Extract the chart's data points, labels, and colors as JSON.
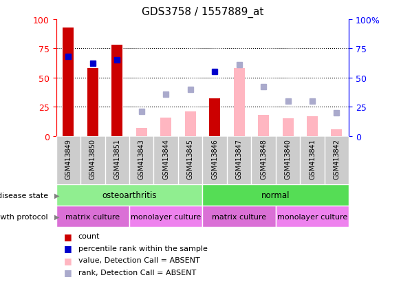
{
  "title": "GDS3758 / 1557889_at",
  "samples": [
    "GSM413849",
    "GSM413850",
    "GSM413851",
    "GSM413843",
    "GSM413844",
    "GSM413845",
    "GSM413846",
    "GSM413847",
    "GSM413848",
    "GSM413840",
    "GSM413841",
    "GSM413842"
  ],
  "count_values": [
    93,
    58,
    78,
    0,
    0,
    0,
    32,
    0,
    0,
    0,
    0,
    0
  ],
  "percentile_rank": [
    68,
    62,
    65,
    null,
    null,
    null,
    55,
    null,
    null,
    null,
    null,
    null
  ],
  "absent_value": [
    null,
    null,
    null,
    7,
    16,
    21,
    null,
    58,
    18,
    15,
    17,
    6
  ],
  "absent_rank": [
    null,
    null,
    null,
    21,
    36,
    40,
    null,
    61,
    42,
    30,
    30,
    20
  ],
  "disease_state_labels": [
    "osteoarthritis",
    "normal"
  ],
  "disease_state_breaks": [
    0,
    6,
    12
  ],
  "disease_state_colors": [
    "#90EE90",
    "#55DD55"
  ],
  "growth_protocol_labels": [
    "matrix culture",
    "monolayer culture",
    "matrix culture",
    "monolayer culture"
  ],
  "growth_protocol_breaks": [
    0,
    3,
    6,
    9,
    12
  ],
  "growth_protocol_colors": [
    "#DA70D6",
    "#EE82EE",
    "#DA70D6",
    "#EE82EE"
  ],
  "bar_color": "#CC0000",
  "dot_color": "#0000CC",
  "absent_bar_color": "#FFB6C1",
  "absent_dot_color": "#AAAACC",
  "ylim": [
    0,
    100
  ],
  "grid_vals": [
    25,
    50,
    75
  ],
  "title_fontsize": 11,
  "legend_items": [
    {
      "color": "#CC0000",
      "label": "count"
    },
    {
      "color": "#0000CC",
      "label": "percentile rank within the sample"
    },
    {
      "color": "#FFB6C1",
      "label": "value, Detection Call = ABSENT"
    },
    {
      "color": "#AAAACC",
      "label": "rank, Detection Call = ABSENT"
    }
  ]
}
